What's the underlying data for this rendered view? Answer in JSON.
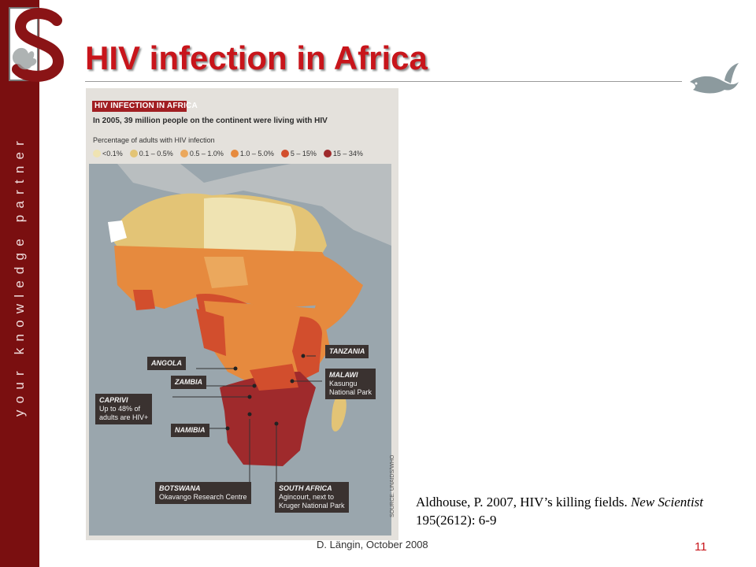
{
  "sidebar": {
    "tagline": "your knowledge partner"
  },
  "slide": {
    "title": "HIV infection in Africa",
    "footer": "D. Längin, October 2008",
    "page_number": "11"
  },
  "figure": {
    "title": "HIV INFECTION IN AFRICA",
    "subtitle": "In 2005, 39 million people on the continent were living with HIV",
    "legend_caption": "Percentage of adults with HIV infection",
    "legend": [
      {
        "label": "<0.1%",
        "color": "#efe3b2"
      },
      {
        "label": "0.1 – 0.5%",
        "color": "#e3c476"
      },
      {
        "label": "0.5 – 1.0%",
        "color": "#eba85d"
      },
      {
        "label": "1.0 – 5.0%",
        "color": "#e68a3e"
      },
      {
        "label": "5 – 15%",
        "color": "#d24e2d"
      },
      {
        "label": "15 – 34%",
        "color": "#9f2a2c"
      }
    ],
    "source": "SOURCE: UNAIDS/WHO",
    "callouts": {
      "angola": "ANGOLA",
      "zambia": "ZAMBIA",
      "caprivi_name": "CAPRIVI",
      "caprivi_line1": "Up to 48% of",
      "caprivi_line2": "adults are HIV+",
      "namibia": "NAMIBIA",
      "tanzania": "TANZANIA",
      "malawi_name": "MALAWI",
      "malawi_line1": "Kasungu",
      "malawi_line2": "National Park",
      "botswana_name": "BOTSWANA",
      "botswana_line1": "Okavango Research Centre",
      "southafrica_name": "SOUTH AFRICA",
      "southafrica_line1": "Agincourt, next to",
      "southafrica_line2": "Kruger National Park"
    }
  },
  "citation": {
    "part1": "Aldhouse, P. 2007, HIV’s killing fields. ",
    "journal": "New Scientist",
    "part2": " 195(2612): 6-9"
  }
}
